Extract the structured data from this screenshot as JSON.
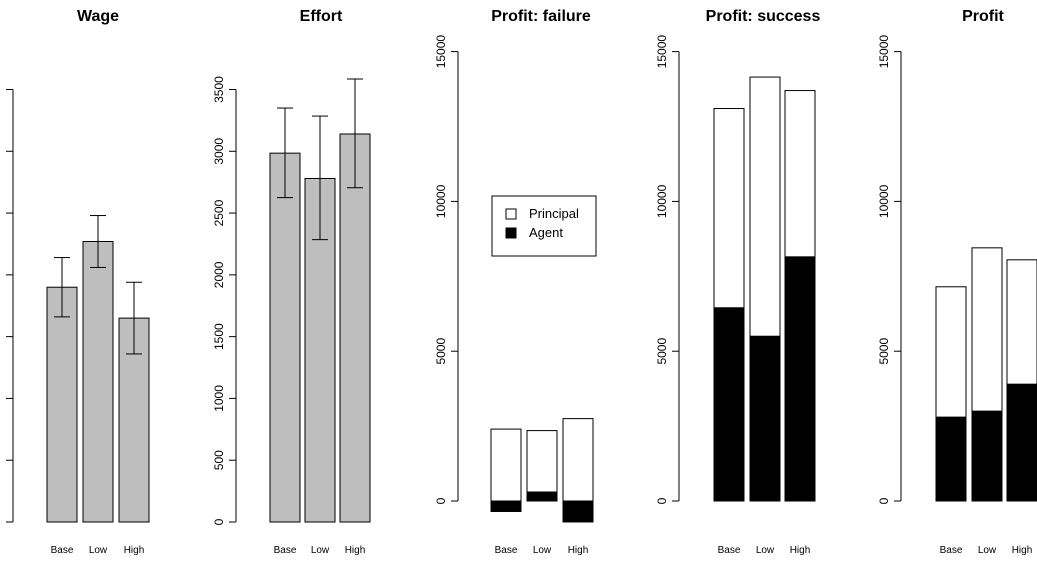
{
  "chart_data": [
    {
      "type": "bar",
      "title": "Wage",
      "categories": [
        "Base",
        "Low",
        "High"
      ],
      "ylim": [
        0,
        3500
      ],
      "yticks": [
        0,
        500,
        1000,
        1500,
        2000,
        2500,
        3000,
        3500
      ],
      "values": [
        1900,
        2270,
        1650
      ],
      "error_low": [
        1660,
        2060,
        1360
      ],
      "error_high": [
        2140,
        2480,
        1940
      ],
      "bar_color": "#bebebe"
    },
    {
      "type": "bar",
      "title": "Effort",
      "categories": [
        "Base",
        "Low",
        "High"
      ],
      "ylim": [
        0,
        3500
      ],
      "yticks": [
        0,
        500,
        1000,
        1500,
        2000,
        2500,
        3000,
        3500
      ],
      "values": [
        2985,
        2780,
        3140
      ],
      "error_low": [
        2625,
        2285,
        2705
      ],
      "error_high": [
        3350,
        3285,
        3585
      ],
      "bar_color": "#bebebe"
    },
    {
      "type": "bar",
      "stacked": true,
      "title": "Profit: failure",
      "categories": [
        "Base",
        "Low",
        "High"
      ],
      "ylim": [
        0,
        15000
      ],
      "yticks": [
        0,
        5000,
        10000,
        15000
      ],
      "series": [
        {
          "name": "Agent",
          "color": "#000000",
          "values": [
            -350,
            300,
            -700
          ]
        },
        {
          "name": "Principal",
          "color": "#ffffff",
          "values": [
            2400,
            2050,
            2750
          ]
        }
      ],
      "legend": {
        "position": "middle-left",
        "entries": [
          "Principal",
          "Agent"
        ]
      }
    },
    {
      "type": "bar",
      "stacked": true,
      "title": "Profit: success",
      "categories": [
        "Base",
        "Low",
        "High"
      ],
      "ylim": [
        0,
        15000
      ],
      "yticks": [
        0,
        5000,
        10000,
        15000
      ],
      "series": [
        {
          "name": "Agent",
          "color": "#000000",
          "values": [
            6450,
            5500,
            8150
          ]
        },
        {
          "name": "Principal",
          "color": "#ffffff",
          "values": [
            6650,
            8650,
            5550
          ]
        }
      ]
    },
    {
      "type": "bar",
      "stacked": true,
      "title": "Profit",
      "categories": [
        "Base",
        "Low",
        "High"
      ],
      "ylim": [
        0,
        15000
      ],
      "yticks": [
        0,
        5000,
        10000,
        15000
      ],
      "series": [
        {
          "name": "Agent",
          "color": "#000000",
          "values": [
            2800,
            3000,
            3900
          ]
        },
        {
          "name": "Principal",
          "color": "#ffffff",
          "values": [
            4350,
            5450,
            4150
          ]
        }
      ]
    }
  ]
}
